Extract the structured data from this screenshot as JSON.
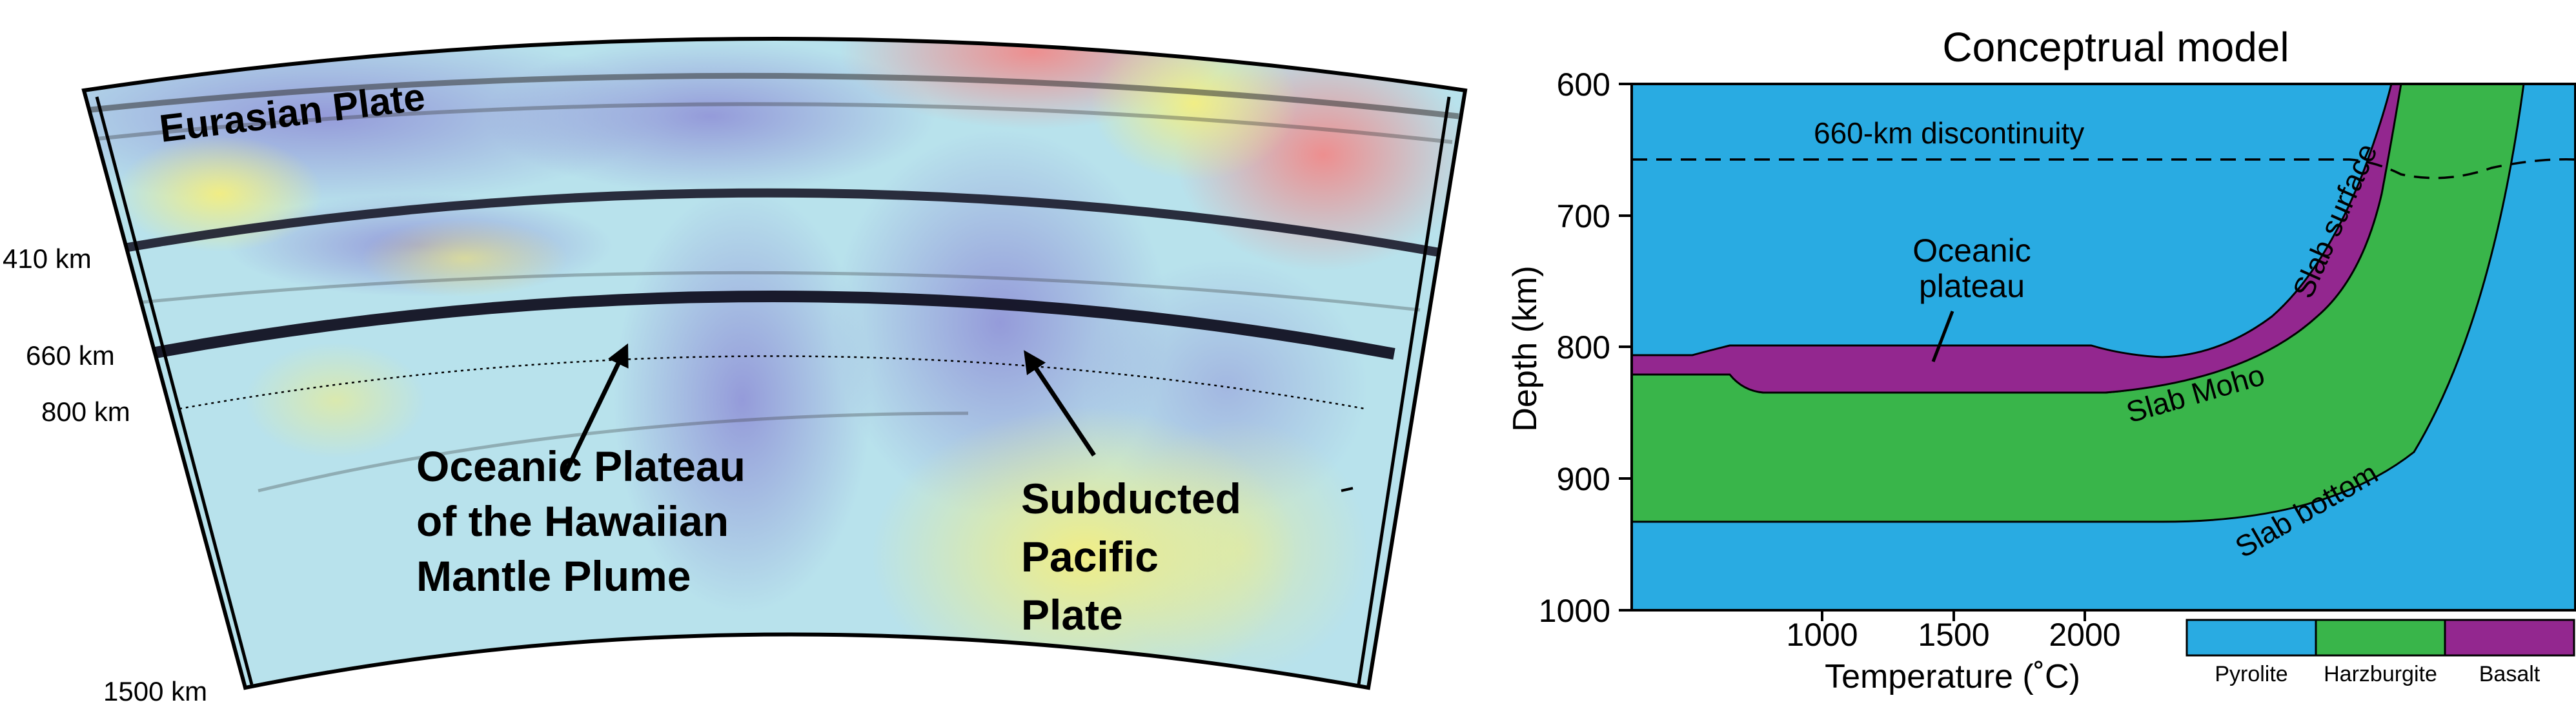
{
  "left_panel": {
    "plate_label": "Eurasian Plate",
    "depth_labels": [
      "410 km",
      "660 km",
      "800 km",
      "1500 km"
    ],
    "plume_label_lines": [
      "Oceanic Plateau",
      "of the Hawaiian",
      "Mantle Plume"
    ],
    "pacific_label_lines": [
      "Subducted",
      "Pacific",
      "Plate"
    ]
  },
  "right_panel": {
    "title": "Conceptrual model",
    "ylabel": "Depth (km)",
    "xlabel": "Temperature (˚C)",
    "y_ticks": [
      "600",
      "700",
      "800",
      "900",
      "1000"
    ],
    "x_ticks": [
      "1000",
      "1500",
      "2000"
    ],
    "discontinuity_label": "660-km discontinuity",
    "plateau_label_lines": [
      "Oceanic",
      "plateau"
    ],
    "slab_surface_label": "Slab surface",
    "slab_moho_label": "Slab Moho",
    "slab_bottom_label": "Slab bottom",
    "legend": [
      {
        "label": "Pyrolite",
        "color": "#29abe2"
      },
      {
        "label": "Harzburgite",
        "color": "#39b54a"
      },
      {
        "label": "Basalt",
        "color": "#93278f"
      }
    ]
  }
}
